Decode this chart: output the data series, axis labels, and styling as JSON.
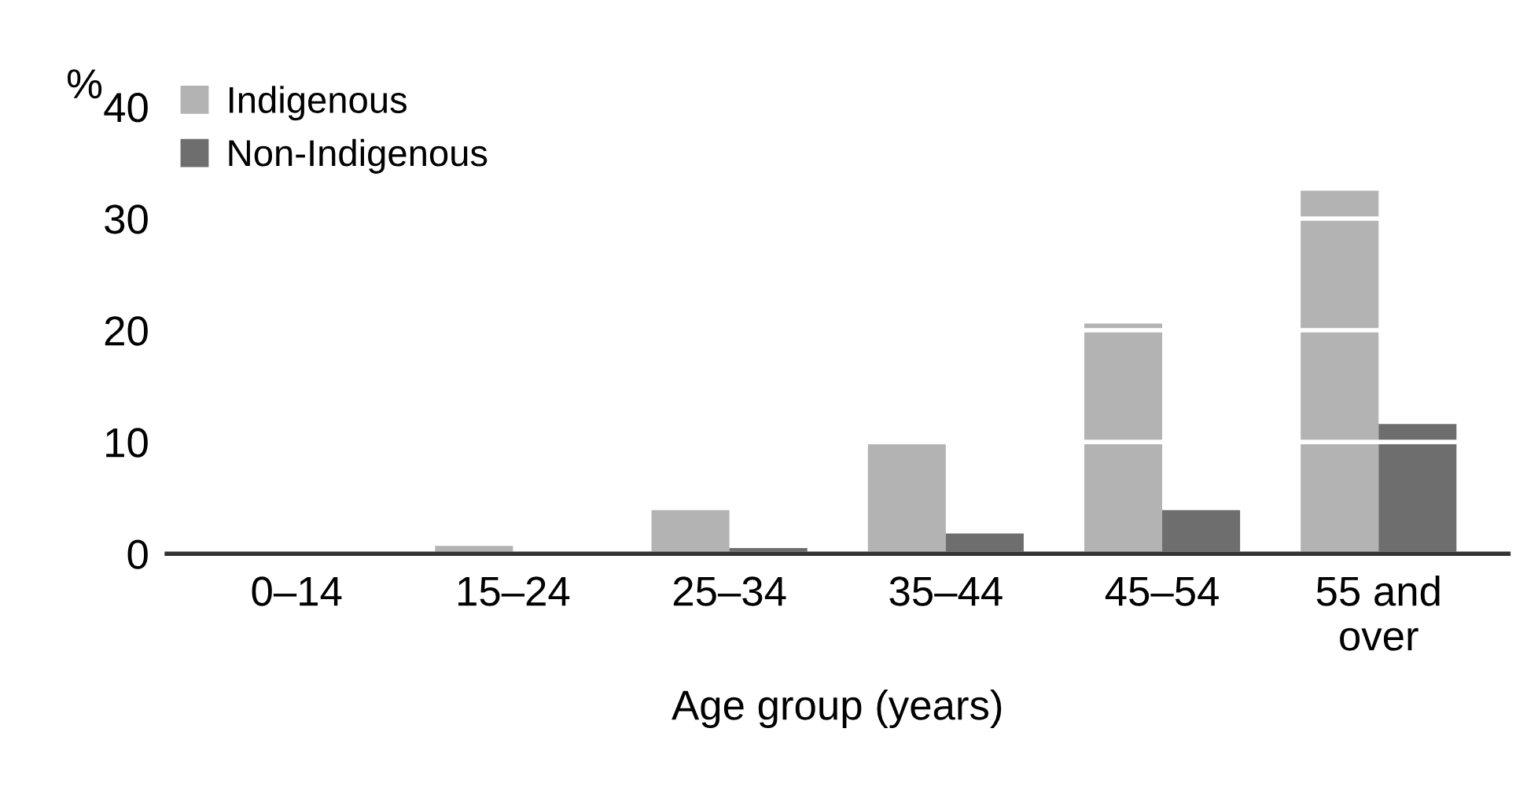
{
  "chart_data": {
    "type": "bar",
    "xlabel": "Age group (years)",
    "ylabel": "%",
    "categories": [
      "0–14",
      "15–24",
      "25–34",
      "35–44",
      "45–54",
      "55 and\nover"
    ],
    "series": [
      {
        "name": "Indigenous",
        "color": "#b3b3b3",
        "values": [
          0,
          0.7,
          3.9,
          9.8,
          20.6,
          32.5
        ]
      },
      {
        "name": "Non-Indigenous",
        "color": "#6e6e6e",
        "values": [
          0,
          0,
          0.5,
          1.8,
          3.9,
          11.6
        ]
      }
    ],
    "ylim": [
      0,
      40
    ],
    "yticks": [
      0,
      10,
      20,
      30,
      40
    ],
    "grid": "y",
    "legend": "top left"
  }
}
